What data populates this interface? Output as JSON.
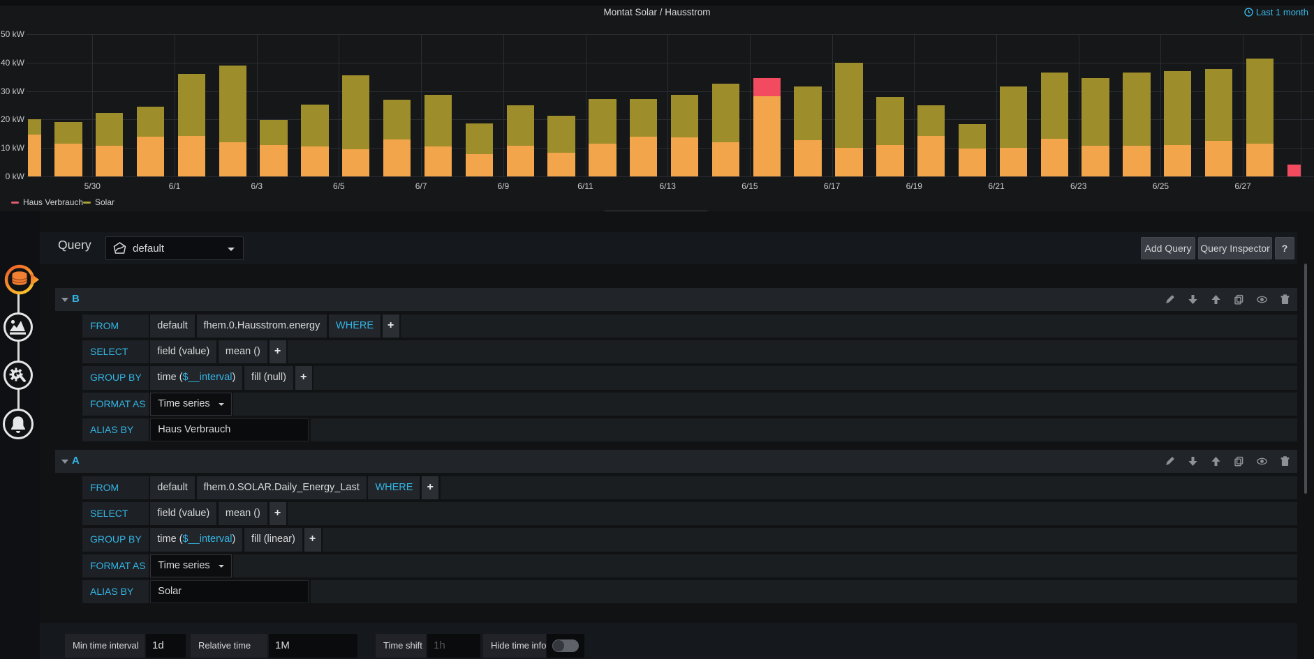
{
  "chart_data": {
    "type": "bar",
    "title": "Montat Solar / Hausstrom",
    "time_range": "Last 1 month",
    "ylim": [
      0,
      50
    ],
    "ytick_labels": [
      "0 kW",
      "10 kW",
      "20 kW",
      "30 kW",
      "40 kW",
      "50 kW"
    ],
    "xtick_labels": [
      "5/30",
      "6/1",
      "6/3",
      "6/5",
      "6/7",
      "6/9",
      "6/11",
      "6/13",
      "6/15",
      "6/17",
      "6/19",
      "6/21",
      "6/23",
      "6/25",
      "6/27"
    ],
    "categories": [
      "5/28",
      "5/29",
      "5/30",
      "5/31",
      "6/1",
      "6/2",
      "6/3",
      "6/4",
      "6/5",
      "6/6",
      "6/7",
      "6/8",
      "6/9",
      "6/10",
      "6/11",
      "6/12",
      "6/13",
      "6/14",
      "6/15",
      "6/16",
      "6/17",
      "6/18",
      "6/19",
      "6/20",
      "6/21",
      "6/22",
      "6/23",
      "6/24",
      "6/25",
      "6/26",
      "6/27",
      "6/28"
    ],
    "series": [
      {
        "name": "Haus Verbrauch",
        "color": "#f24a5f",
        "values": [
          14.7,
          11.5,
          10.8,
          13.9,
          14.2,
          11.9,
          11.1,
          10.5,
          9.4,
          13.0,
          10.6,
          7.8,
          10.7,
          8.3,
          11.5,
          14.0,
          13.7,
          11.9,
          34.5,
          12.7,
          9.9,
          11.1,
          14.3,
          9.8,
          10.1,
          13.3,
          10.7,
          10.8,
          11.1,
          12.5,
          11.5,
          4.1
        ]
      },
      {
        "name": "Solar",
        "color": "#9e8d2b",
        "values": [
          20.0,
          19.0,
          22.3,
          24.5,
          36.0,
          39.0,
          19.8,
          25.2,
          35.5,
          27.0,
          28.7,
          18.5,
          25.0,
          21.4,
          27.1,
          27.1,
          28.6,
          32.7,
          28.3,
          31.6,
          40.0,
          27.9,
          25.0,
          18.4,
          31.6,
          36.5,
          34.7,
          36.6,
          37.0,
          37.9,
          41.6,
          0
        ]
      }
    ],
    "overlap_color": "#f2a54a",
    "legend": [
      {
        "label": "Haus Verbrauch",
        "color": "#e25c70"
      },
      {
        "label": "Solar",
        "color": "#a99e33"
      }
    ],
    "grid": true,
    "legend_position": "bottom-left"
  },
  "sidebar": {
    "tabs": [
      "queries",
      "visualization",
      "general",
      "alert"
    ]
  },
  "query_header": {
    "title": "Query",
    "datasource": "default",
    "add_query_label": "Add Query",
    "query_inspector_label": "Query Inspector",
    "help_label": "?"
  },
  "row_labels": [
    "FROM",
    "SELECT",
    "GROUP BY",
    "FORMAT AS",
    "ALIAS BY"
  ],
  "where_label": "WHERE",
  "plus_label": "+",
  "queries": [
    {
      "letter": "B",
      "from": [
        "default",
        "fhem.0.Hausstrom.energy"
      ],
      "select": [
        "field (value)",
        "mean ()"
      ],
      "group_by_time_pre": "time (",
      "group_by_time_var": "$__interval",
      "group_by_time_post": ")",
      "group_by_fill": "fill (null)",
      "format_as": "Time series",
      "alias_by": "Haus Verbrauch"
    },
    {
      "letter": "A",
      "from": [
        "default",
        "fhem.0.SOLAR.Daily_Energy_Last"
      ],
      "select": [
        "field (value)",
        "mean ()"
      ],
      "group_by_time_pre": "time (",
      "group_by_time_var": "$__interval",
      "group_by_time_post": ")",
      "group_by_fill": "fill (linear)",
      "format_as": "Time series",
      "alias_by": "Solar"
    }
  ],
  "options": {
    "min_time_interval_label": "Min time interval",
    "min_time_interval_value": "1d",
    "relative_time_label": "Relative time",
    "relative_time_value": "1M",
    "time_shift_label": "Time shift",
    "time_shift_placeholder": "1h",
    "hide_time_info_label": "Hide time info",
    "hide_time_info_on": false
  }
}
